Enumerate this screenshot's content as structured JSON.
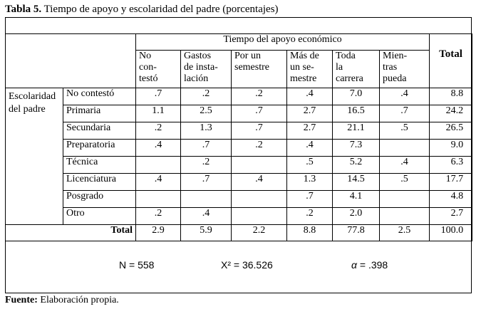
{
  "caption": {
    "label": "Tabla 5.",
    "text": " Tiempo de apoyo y escolaridad del padre (porcentajes)"
  },
  "table": {
    "group_header": "Tiempo del apoyo económico",
    "total_header": "Total",
    "row_group_label": "Escolaridad del padre",
    "columns": [
      [
        "No",
        "con-",
        "testó"
      ],
      [
        "Gastos",
        "de insta-",
        "lación"
      ],
      [
        "Por un",
        "semestre"
      ],
      [
        "Más de",
        "un se-",
        "mestre"
      ],
      [
        "Toda",
        "la",
        "carrera"
      ],
      [
        "Mien-",
        "tras",
        "pueda"
      ]
    ],
    "rows": [
      {
        "label": "No contestó",
        "values": [
          ".7",
          ".2",
          ".2",
          ".4",
          "7.0",
          ".4"
        ],
        "total": "8.8"
      },
      {
        "label": "Primaria",
        "values": [
          "1.1",
          "2.5",
          ".7",
          "2.7",
          "16.5",
          ".7"
        ],
        "total": "24.2"
      },
      {
        "label": "Secundaria",
        "values": [
          ".2",
          "1.3",
          ".7",
          "2.7",
          "21.1",
          ".5"
        ],
        "total": "26.5"
      },
      {
        "label": "Preparatoria",
        "values": [
          ".4",
          ".7",
          ".2",
          ".4",
          "7.3",
          ""
        ],
        "total": "9.0"
      },
      {
        "label": "Técnica",
        "values": [
          "",
          ".2",
          "",
          ".5",
          "5.2",
          ".4"
        ],
        "total": "6.3"
      },
      {
        "label": "Licenciatura",
        "values": [
          ".4",
          ".7",
          ".4",
          "1.3",
          "14.5",
          ".5"
        ],
        "total": "17.7"
      },
      {
        "label": "Posgrado",
        "values": [
          "",
          "",
          "",
          ".7",
          "4.1",
          ""
        ],
        "total": "4.8"
      },
      {
        "label": "Otro",
        "values": [
          ".2",
          ".4",
          "",
          ".2",
          "2.0",
          ""
        ],
        "total": "2.7"
      }
    ],
    "total_row": {
      "label": "Total",
      "values": [
        "2.9",
        "5.9",
        "2.2",
        "8.8",
        "77.8",
        "2.5"
      ],
      "total": "100.0"
    }
  },
  "stats": {
    "n": "N = 558",
    "chi": "X² = 36.526",
    "alpha_symbol": "α",
    "alpha_value": " = .398"
  },
  "source": {
    "label": "Fuente:",
    "text": " Elaboración propia."
  }
}
